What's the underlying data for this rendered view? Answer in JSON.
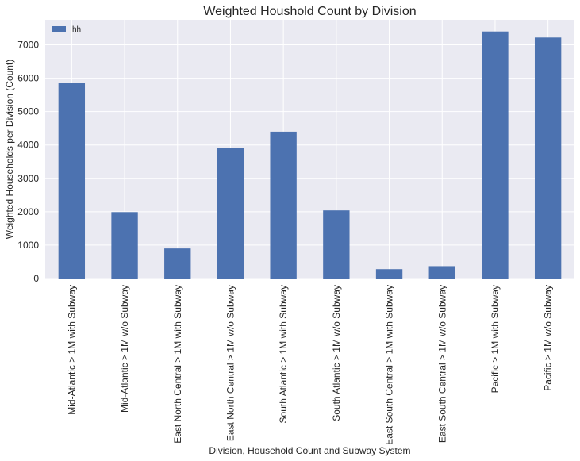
{
  "chart_data": {
    "type": "bar",
    "title": "Weighted Houshold Count by Division",
    "xlabel": "Division, Household Count and Subway System",
    "ylabel": "Weighted Households per Division (Count)",
    "categories": [
      "Mid-Atlantic > 1M with Subway",
      "Mid-Atlantic > 1M w/o Subway",
      "East North Central > 1M with Subway",
      "East North Central > 1M w/o Subway",
      "South Atlantic > 1M with Subway",
      "South Atlantic > 1M w/o Subway",
      "East South Central > 1M with Subway",
      "East South Central > 1M w/o Subway",
      "Pacific > 1M with Subway",
      "Pacific > 1M w/o Subway"
    ],
    "series": [
      {
        "name": "hh",
        "values": [
          5850,
          1990,
          900,
          3920,
          4400,
          2040,
          280,
          370,
          7400,
          7220
        ]
      }
    ],
    "ylim": [
      0,
      7750
    ],
    "yticks": [
      0,
      1000,
      2000,
      3000,
      4000,
      5000,
      6000,
      7000
    ],
    "grid": true,
    "legend_position": "top-left",
    "colors": {
      "bar": "#4c72b0",
      "background": "#eaeaf2",
      "grid": "#ffffff"
    }
  }
}
